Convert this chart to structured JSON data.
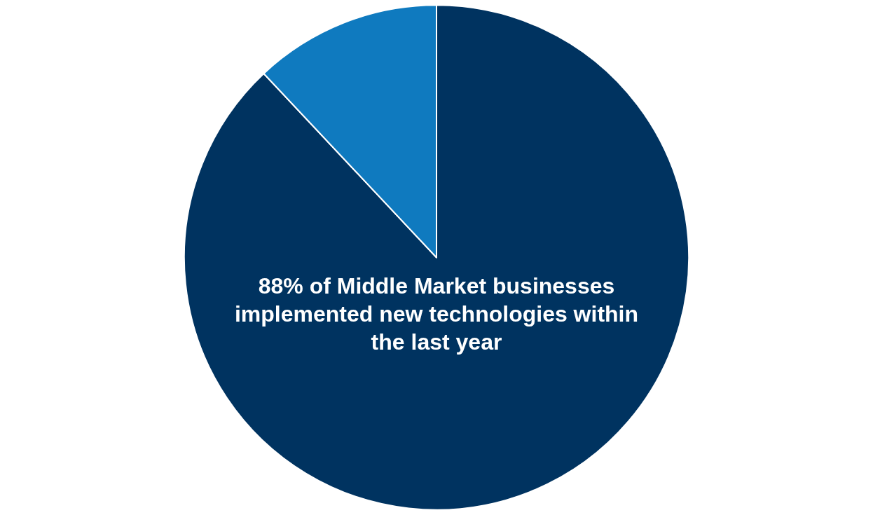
{
  "chart_data": {
    "type": "pie",
    "categories": [
      null,
      null
    ],
    "values": [
      88,
      12
    ],
    "colors": [
      "#003360",
      "#0f7abf"
    ],
    "annotations": [
      "88% of Middle Market businesses implemented new technologies within the last year"
    ]
  }
}
